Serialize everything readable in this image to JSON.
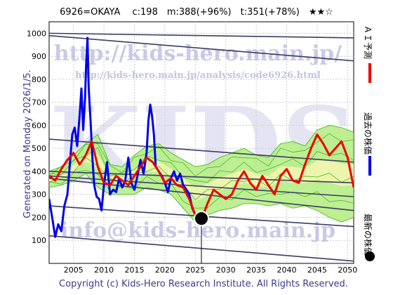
{
  "header": {
    "title": "6926=OKAYA　 c:198　m:388(+96%)　t:351(+78%)　★★☆"
  },
  "watermarks": {
    "url_main": "http://kids-hero.main.jp/",
    "url_analysis": "http://kids-hero.main.jp/analysis/code6926.html",
    "email": "info@kids-hero.main.jp",
    "logo": "KIDS"
  },
  "side_text": {
    "generated": "Generated on Monday 2026/1/5.",
    "copyright": "Copyright (c) Kids-Hero Research Institute. All Rights Reserved."
  },
  "legend": {
    "ai_forecast": "ＡＩ予測",
    "past_price": "過去の株価",
    "latest_price": "最新の株価"
  },
  "colors": {
    "ai_forecast": "#ee0000",
    "past_price": "#0000ee",
    "band_fill": "#b8ee88",
    "band_line": "#44bb22",
    "yellow_fill": "#f6f6b0",
    "trend_line": "#3c3c64",
    "latest_dot": "#000000"
  },
  "chart_data": {
    "type": "line",
    "xlim": [
      2001,
      2051
    ],
    "ylim": [
      0,
      1050
    ],
    "x_ticks": [
      2005,
      2010,
      2015,
      2020,
      2025,
      2030,
      2035,
      2040,
      2045,
      2050
    ],
    "y_ticks": [
      100,
      200,
      300,
      400,
      500,
      600,
      700,
      800,
      900,
      1000
    ],
    "grid": true,
    "series": [
      {
        "name": "過去の株価",
        "x": [
          2001.0,
          2001.5,
          2002.0,
          2002.5,
          2003.0,
          2003.5,
          2004.0,
          2004.4,
          2004.8,
          2005.2,
          2005.6,
          2006.0,
          2006.3,
          2006.6,
          2006.9,
          2007.1,
          2007.3,
          2007.5,
          2007.8,
          2008.1,
          2008.4,
          2008.8,
          2009.2,
          2009.6,
          2010.0,
          2010.5,
          2011.0,
          2011.5,
          2012.0,
          2012.5,
          2013.0,
          2013.5,
          2014.0,
          2014.5,
          2015.0,
          2015.5,
          2016.0,
          2016.5,
          2017.0,
          2017.3,
          2017.6,
          2017.9,
          2018.2,
          2018.5,
          2019.0,
          2019.5,
          2020.0,
          2020.5,
          2021.0,
          2021.5,
          2022.0,
          2022.5,
          2023.0,
          2023.5,
          2024.0,
          2024.5,
          2025.0,
          2025.3
        ],
        "y": [
          280,
          200,
          115,
          170,
          140,
          250,
          300,
          430,
          560,
          590,
          510,
          640,
          760,
          580,
          720,
          880,
          980,
          760,
          620,
          460,
          340,
          290,
          280,
          230,
          340,
          440,
          300,
          320,
          310,
          370,
          330,
          360,
          460,
          350,
          320,
          380,
          450,
          390,
          480,
          620,
          690,
          640,
          560,
          420,
          400,
          380,
          350,
          310,
          370,
          400,
          360,
          390,
          340,
          320,
          300,
          240,
          210,
          200
        ]
      },
      {
        "name": "ＡＩ予測",
        "x": [
          2001.0,
          2002.0,
          2003.0,
          2004.0,
          2005.0,
          2006.0,
          2007.0,
          2008.0,
          2009.0,
          2010.0,
          2011.0,
          2012.0,
          2013.0,
          2014.0,
          2015.0,
          2016.0,
          2017.0,
          2018.0,
          2019.0,
          2020.0,
          2021.0,
          2022.0,
          2023.0,
          2024.0,
          2025.0,
          2026.0,
          2027.0,
          2028.0,
          2029.0,
          2030.0,
          2031.0,
          2032.0,
          2033.0,
          2034.0,
          2035.0,
          2036.0,
          2037.0,
          2038.0,
          2039.0,
          2040.0,
          2041.0,
          2042.0,
          2043.0,
          2044.0,
          2045.0,
          2046.0,
          2047.0,
          2048.0,
          2049.0,
          2050.0,
          2051.0
        ],
        "y": [
          380,
          360,
          410,
          450,
          480,
          430,
          470,
          530,
          420,
          350,
          340,
          380,
          360,
          340,
          380,
          420,
          460,
          440,
          400,
          350,
          370,
          340,
          330,
          280,
          210,
          190,
          260,
          320,
          300,
          280,
          300,
          360,
          400,
          350,
          320,
          380,
          340,
          300,
          380,
          410,
          360,
          350,
          430,
          500,
          560,
          520,
          470,
          500,
          530,
          460,
          330
        ]
      }
    ],
    "latest_point": {
      "x": 2026.0,
      "y": 195
    },
    "band": {
      "x": [
        2001,
        2003,
        2005,
        2007,
        2009,
        2011,
        2013,
        2015,
        2017,
        2019,
        2021,
        2023,
        2025,
        2027,
        2029,
        2031,
        2033,
        2035,
        2037,
        2039,
        2041,
        2043,
        2045,
        2047,
        2049,
        2051
      ],
      "upper": [
        400,
        420,
        470,
        520,
        560,
        430,
        420,
        470,
        510,
        520,
        480,
        450,
        420,
        430,
        460,
        480,
        500,
        470,
        460,
        520,
        530,
        510,
        580,
        600,
        590,
        570
      ],
      "lower": [
        330,
        340,
        360,
        390,
        330,
        300,
        300,
        300,
        330,
        320,
        300,
        240,
        180,
        210,
        230,
        240,
        260,
        260,
        250,
        260,
        240,
        250,
        230,
        200,
        180,
        200
      ]
    },
    "trend_lines": [
      {
        "x": [
          2001,
          2051
        ],
        "y": [
          990,
          880
        ]
      },
      {
        "x": [
          2001,
          2051
        ],
        "y": [
          1000,
          980
        ]
      },
      {
        "x": [
          2001,
          2051
        ],
        "y": [
          540,
          440
        ]
      },
      {
        "x": [
          2001,
          2051
        ],
        "y": [
          400,
          350
        ]
      },
      {
        "x": [
          2001,
          2051
        ],
        "y": [
          380,
          290
        ]
      },
      {
        "x": [
          2001,
          2051
        ],
        "y": [
          370,
          230
        ]
      },
      {
        "x": [
          2001,
          2051
        ],
        "y": [
          250,
          160
        ]
      },
      {
        "x": [
          2001,
          2051
        ],
        "y": [
          120,
          10
        ]
      }
    ]
  }
}
